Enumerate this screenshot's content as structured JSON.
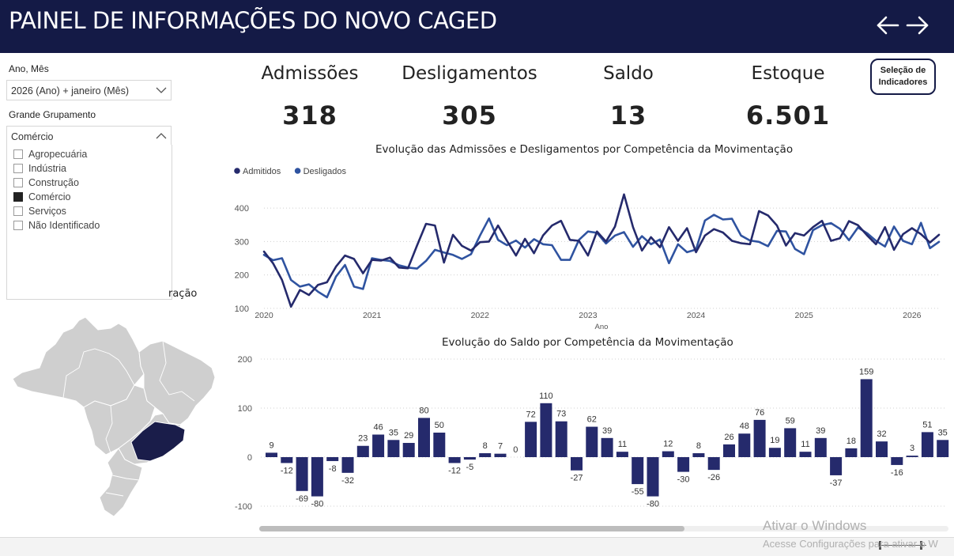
{
  "header": {
    "title": "PAINEL DE INFORMAÇÕES DO NOVO CAGED",
    "back_icon": "arrow-left-icon",
    "forward_icon": "arrow-right-icon"
  },
  "filters": {
    "period_label": "Ano, Mês",
    "period_value": "2026 (Ano) + janeiro (Mês)",
    "group_label": "Grande Grupamento",
    "group_value": "Comércio",
    "group_options": [
      {
        "label": "Agropecuária",
        "checked": false
      },
      {
        "label": "Indústria",
        "checked": false
      },
      {
        "label": "Construção",
        "checked": false
      },
      {
        "label": "Comércio",
        "checked": true
      },
      {
        "label": "Serviços",
        "checked": false
      },
      {
        "label": "Não Identificado",
        "checked": false
      }
    ]
  },
  "map": {
    "title_fragment": "ração",
    "highlight_color": "#1a1d4a",
    "base_color": "#cfcfcf"
  },
  "kpis": {
    "admissoes_label": "Admissões",
    "admissoes_value": "318",
    "desligamentos_label": "Desligamentos",
    "desligamentos_value": "305",
    "saldo_label": "Saldo",
    "saldo_value": "13",
    "estoque_label": "Estoque",
    "estoque_value": "6.501"
  },
  "indicator_button": {
    "line1": "Seleção de",
    "line2": "Indicadores"
  },
  "chart_data": [
    {
      "type": "line",
      "title": "Evolução das Admissões e Desligamentos por Competência da Movimentação",
      "xlabel": "Ano",
      "ylabel": "",
      "x_ticks": [
        "2020",
        "2021",
        "2022",
        "2023",
        "2024",
        "2025",
        "2026"
      ],
      "y_ticks": [
        100,
        200,
        300,
        400
      ],
      "ylim": [
        95,
        450
      ],
      "grid": true,
      "legend": "top-left",
      "series": [
        {
          "name": "Admitidos",
          "color": "#252a6c",
          "values": [
            270,
            235,
            185,
            105,
            155,
            140,
            170,
            178,
            225,
            258,
            248,
            205,
            245,
            243,
            252,
            222,
            220,
            288,
            353,
            348,
            237,
            320,
            287,
            273,
            298,
            300,
            348,
            302,
            258,
            308,
            265,
            318,
            348,
            362,
            305,
            302,
            258,
            330,
            300,
            345,
            441,
            343,
            273,
            313,
            283,
            343,
            302,
            340,
            268,
            318,
            337,
            327,
            302,
            295,
            292,
            391,
            378,
            348,
            288,
            325,
            318,
            343,
            362,
            302,
            310,
            361,
            349,
            319,
            292,
            343,
            275,
            322,
            340,
            322,
            297,
            320
          ]
        },
        {
          "name": "Desligados",
          "color": "#2f53a0",
          "values": [
            260,
            244,
            250,
            185,
            165,
            172,
            150,
            133,
            195,
            230,
            165,
            158,
            250,
            245,
            242,
            229,
            222,
            219,
            242,
            275,
            267,
            260,
            248,
            262,
            318,
            369,
            305,
            289,
            303,
            282,
            307,
            292,
            289,
            245,
            245,
            305,
            330,
            326,
            294,
            318,
            328,
            284,
            316,
            292,
            306,
            235,
            292,
            268,
            276,
            363,
            380,
            366,
            368,
            318,
            303,
            299,
            286,
            332,
            330,
            278,
            262,
            334,
            349,
            355,
            338,
            304,
            342,
            325,
            302,
            285,
            345,
            302,
            292,
            356,
            280,
            299
          ]
        }
      ]
    },
    {
      "type": "bar",
      "title": "Evolução do Saldo por Competência da Movimentação",
      "y_ticks": [
        -100,
        0,
        100,
        200
      ],
      "ylim": [
        -100,
        200
      ],
      "grid": true,
      "color": "#252a6c",
      "values": [
        9,
        -12,
        -69,
        -80,
        -8,
        -32,
        23,
        46,
        35,
        29,
        80,
        50,
        -12,
        -5,
        8,
        7,
        0,
        72,
        110,
        73,
        -27,
        62,
        39,
        11,
        -55,
        -80,
        12,
        -30,
        8,
        -26,
        26,
        48,
        76,
        19,
        59,
        11,
        39,
        -37,
        18,
        159,
        32,
        -16,
        3,
        51,
        35
      ]
    }
  ],
  "watermark": {
    "line1": "Ativar o Windows",
    "line2": "Acesse Configurações para ativar o W"
  }
}
